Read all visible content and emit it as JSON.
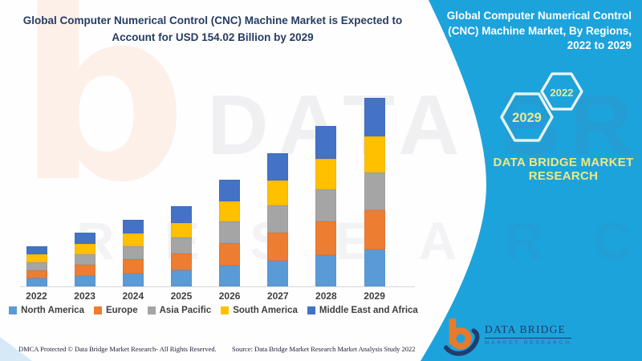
{
  "header": {
    "title_line1": "Global Computer Numerical Control (CNC) Machine Market is Expected to",
    "title_line2": "Account for USD 154.02 Billion by 2029"
  },
  "right_panel": {
    "title": "Global Computer Numerical Control (CNC) Machine Market, By Regions, 2022 to 2029",
    "hexagons": [
      {
        "label": "2029"
      },
      {
        "label": "2022"
      }
    ],
    "brand_line1": "DATA BRIDGE MARKET",
    "brand_line2": "RESEARCH",
    "logo": {
      "name": "DATA BRIDGE",
      "subtext": "MARKET RESEARCH"
    }
  },
  "footer": {
    "left": "DMCA Protected © Data Bridge Market Research- All Rights Reserved.",
    "right": "Source: Data Bridge Market Research Market Analysis Study 2022"
  },
  "watermarks": {
    "b": "b",
    "row1": "DATA BRIDGE",
    "row2": "R E S E A R C H"
  },
  "colors": {
    "panel_blue": "#1da3dc",
    "title_navy": "#263c64",
    "legend_text": "#3f3f3f",
    "brand_yellow": "#efe87f",
    "hex_label_yellow": "#ede88f",
    "hex_outline": "#e3f4f9",
    "logo_orange": "#e87a2c",
    "logo_navy": "#1f3e6e"
  },
  "chart_data": {
    "type": "bar",
    "stacked": true,
    "title": "Global Computer Numerical Control (CNC) Machine Market, By Regions, 2022 to 2029",
    "unit": "USD Billion",
    "categories": [
      "2022",
      "2023",
      "2024",
      "2025",
      "2026",
      "2027",
      "2028",
      "2029"
    ],
    "series": [
      {
        "name": "North America",
        "color": "#5B9BD5",
        "values": [
          6.4,
          8.5,
          10.6,
          12.8,
          17.0,
          21.3,
          25.6,
          30.0
        ]
      },
      {
        "name": "Europe",
        "color": "#ED7D31",
        "values": [
          6.9,
          9.2,
          11.5,
          13.8,
          18.4,
          22.9,
          27.5,
          32.3
        ]
      },
      {
        "name": "Asia Pacific",
        "color": "#A5A5A5",
        "values": [
          6.6,
          8.7,
          10.9,
          13.1,
          17.5,
          21.8,
          26.2,
          30.8
        ]
      },
      {
        "name": "South America",
        "color": "#FFC000",
        "values": [
          6.2,
          8.3,
          10.4,
          12.4,
          16.6,
          20.7,
          24.9,
          29.3
        ]
      },
      {
        "name": "Middle East and Africa",
        "color": "#4472C4",
        "values": [
          6.7,
          9.0,
          11.2,
          13.4,
          17.9,
          22.4,
          26.9,
          31.6
        ]
      }
    ],
    "totals": [
      32.8,
      43.7,
      54.6,
      65.5,
      87.4,
      109.2,
      131.1,
      154.02
    ],
    "final_year_total": 154.02,
    "y_axis": {
      "visible": false,
      "range": [
        0,
        160
      ]
    },
    "x_axis": {
      "labels_visible": true
    },
    "gridlines": false,
    "legend_position": "bottom"
  }
}
